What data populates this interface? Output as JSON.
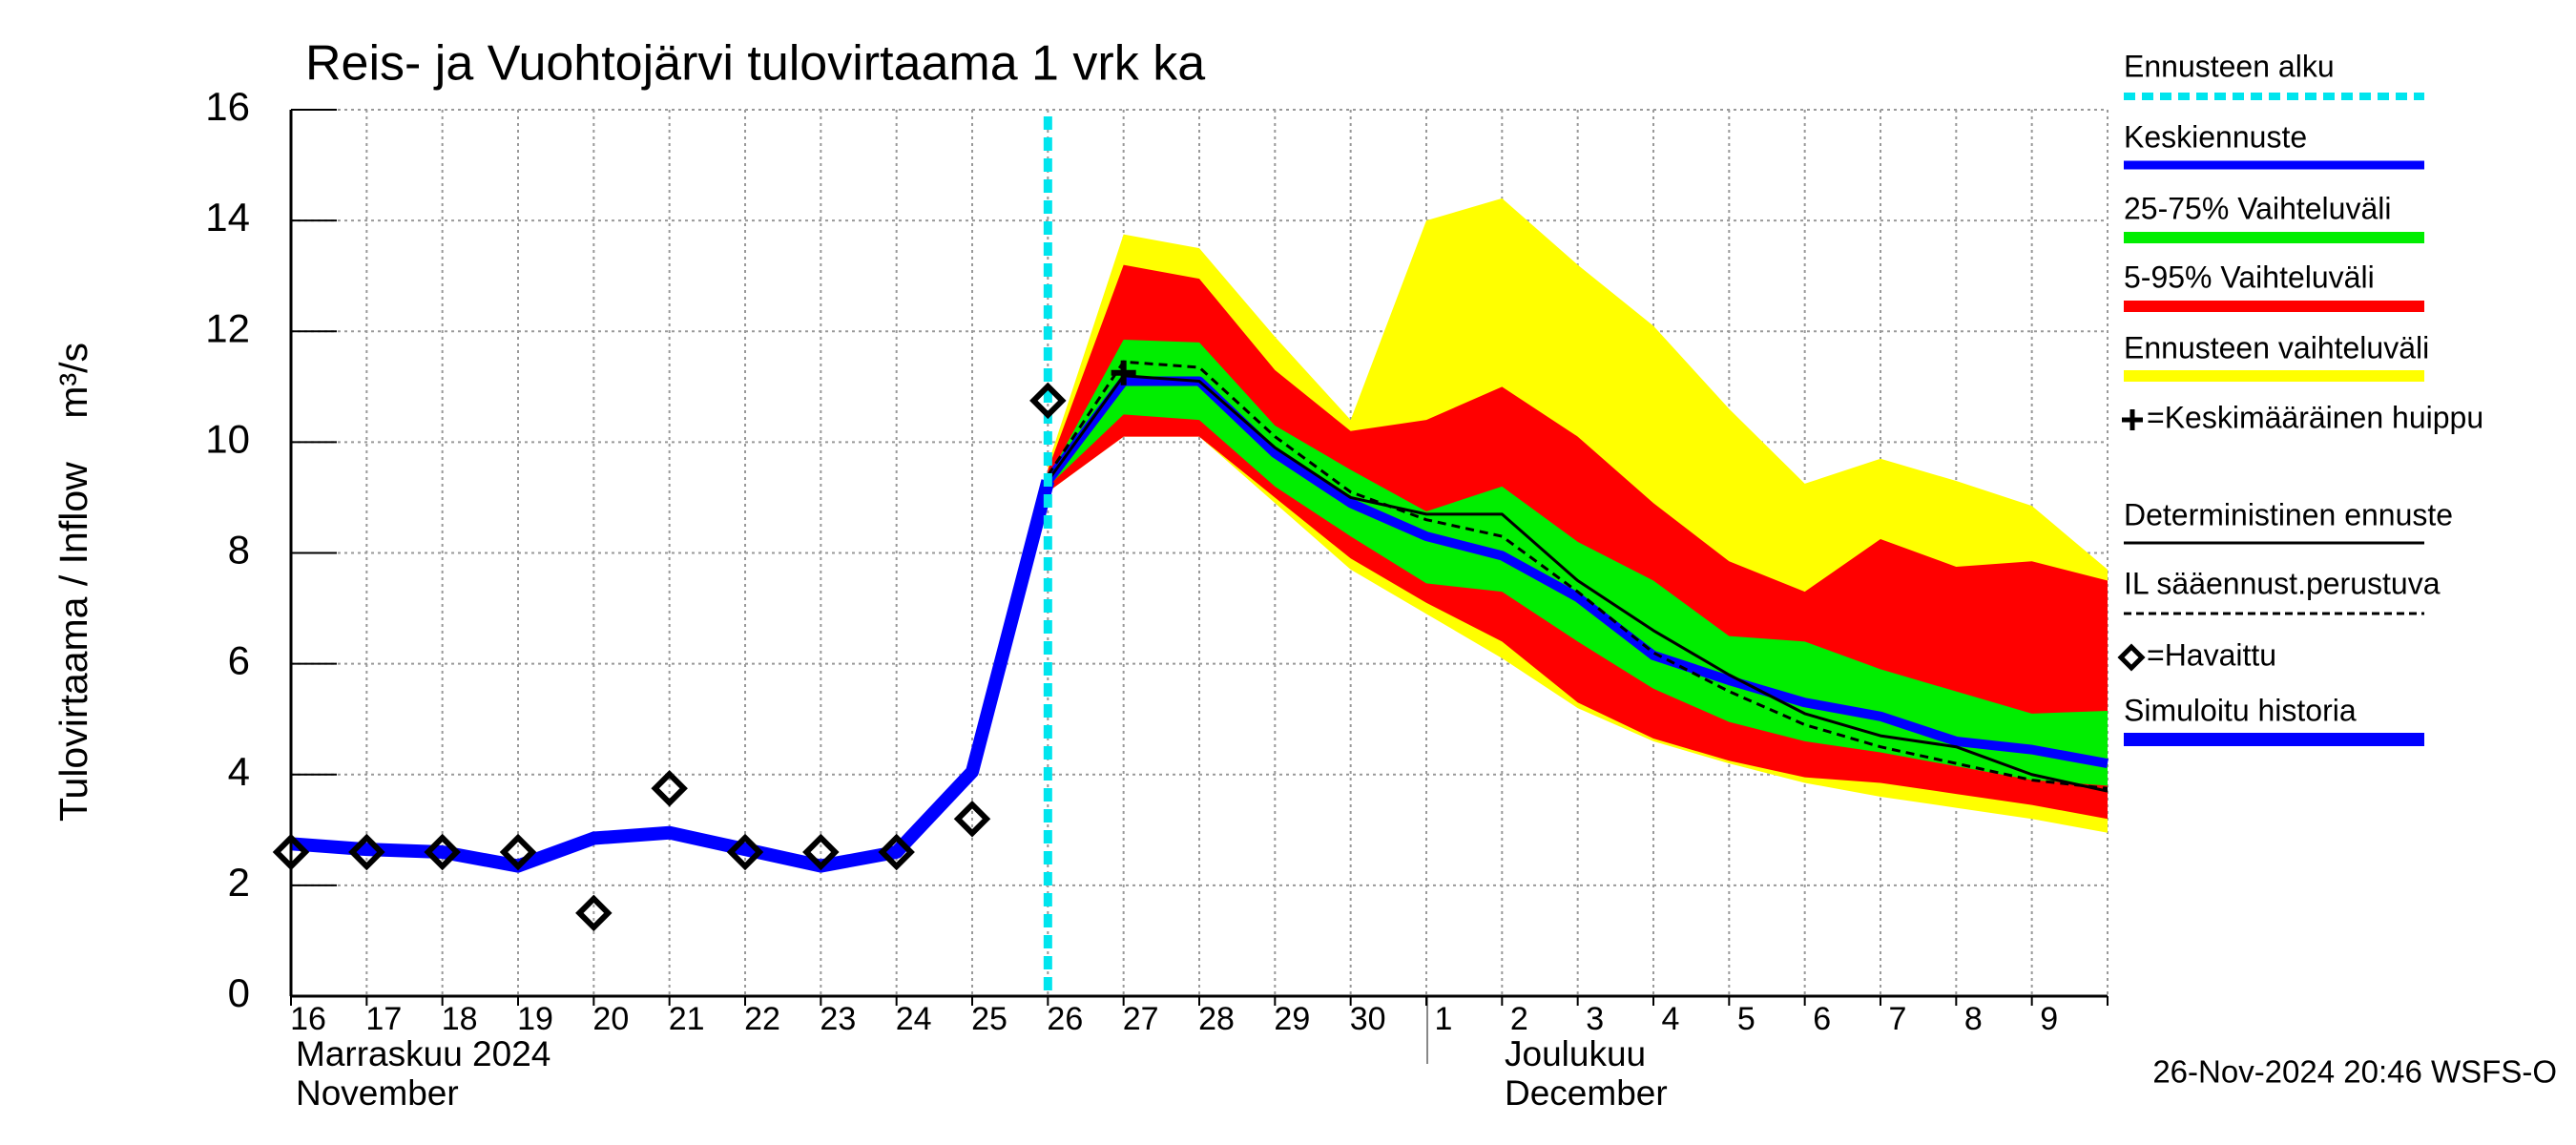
{
  "chart_data": {
    "type": "hydrograph",
    "title": "Reis- ja Vuohtojärvi tulovirtaama 1 vrk ka",
    "y_label": "Tulovirtaama / Inflow    m³/s",
    "footer": "26-Nov-2024 20:46 WSFS-O",
    "months": [
      {
        "fi": "Marraskuu 2024",
        "en": "November"
      },
      {
        "fi": "Joulukuu",
        "en": "December"
      }
    ],
    "categories": [
      "16",
      "17",
      "18",
      "19",
      "20",
      "21",
      "22",
      "23",
      "24",
      "25",
      "26",
      "27",
      "28",
      "29",
      "30",
      "1",
      "2",
      "3",
      "4",
      "5",
      "6",
      "7",
      "8",
      "9",
      null
    ],
    "ylim": [
      0,
      16
    ],
    "yticks": [
      0,
      2,
      4,
      6,
      8,
      10,
      12,
      14,
      16
    ],
    "grid": true,
    "legend": "right",
    "forecast_start": {
      "name": "Ennusteen alku",
      "color": "#00e5ee",
      "category": "26"
    },
    "series": [
      {
        "name": "Keskiennuste",
        "kind": "line",
        "color": "#0000ff",
        "values": [
          null,
          null,
          null,
          null,
          null,
          null,
          null,
          null,
          null,
          null,
          9.3,
          11.1,
          11.1,
          9.8,
          8.9,
          8.3,
          7.95,
          7.2,
          6.15,
          5.7,
          5.3,
          5.05,
          4.6,
          4.45,
          4.2
        ]
      },
      {
        "name": "25-75% Vaihteluväli",
        "kind": "band",
        "color": "#00ee00",
        "upper": [
          null,
          null,
          null,
          null,
          null,
          null,
          null,
          null,
          null,
          null,
          9.35,
          11.85,
          11.8,
          10.3,
          9.5,
          8.75,
          9.2,
          8.2,
          7.5,
          6.5,
          6.4,
          5.9,
          5.5,
          5.1,
          5.15
        ],
        "lower": [
          null,
          null,
          null,
          null,
          null,
          null,
          null,
          null,
          null,
          null,
          9.2,
          10.5,
          10.4,
          9.2,
          8.3,
          7.45,
          7.3,
          6.4,
          5.55,
          4.95,
          4.6,
          4.4,
          4.15,
          3.9,
          3.8
        ]
      },
      {
        "name": "5-95% Vaihteluväli",
        "kind": "band",
        "color": "#ff0000",
        "upper": [
          null,
          null,
          null,
          null,
          null,
          null,
          null,
          null,
          null,
          null,
          9.5,
          13.2,
          12.95,
          11.3,
          10.2,
          10.4,
          11.0,
          10.1,
          8.9,
          7.85,
          7.3,
          8.25,
          7.75,
          7.85,
          7.5
        ],
        "lower": [
          null,
          null,
          null,
          null,
          null,
          null,
          null,
          null,
          null,
          null,
          9.1,
          10.1,
          10.1,
          9.0,
          7.9,
          7.1,
          6.4,
          5.3,
          4.65,
          4.25,
          3.95,
          3.85,
          3.65,
          3.45,
          3.2
        ]
      },
      {
        "name": "Ennusteen vaihteluväli",
        "kind": "band",
        "color": "#ffff00",
        "upper": [
          null,
          null,
          null,
          null,
          null,
          null,
          null,
          null,
          null,
          null,
          9.6,
          13.75,
          13.5,
          11.9,
          10.4,
          14.0,
          14.4,
          13.2,
          12.1,
          10.6,
          9.25,
          9.7,
          9.3,
          8.85,
          7.7
        ],
        "lower": [
          null,
          null,
          null,
          null,
          null,
          null,
          null,
          null,
          null,
          null,
          9.1,
          10.1,
          10.1,
          8.9,
          7.7,
          6.9,
          6.1,
          5.2,
          4.6,
          4.2,
          3.85,
          3.6,
          3.4,
          3.2,
          2.95
        ]
      },
      {
        "name": "=Keskimääräinen huippu",
        "kind": "plus",
        "color": "#000000",
        "values": [
          null,
          null,
          null,
          null,
          null,
          null,
          null,
          null,
          null,
          null,
          null,
          11.25,
          null,
          null,
          null,
          null,
          null,
          null,
          null,
          null,
          null,
          null,
          null,
          null,
          null
        ]
      },
      {
        "name": "Deterministinen ennuste",
        "kind": "line",
        "color": "#000000",
        "values": [
          null,
          null,
          null,
          null,
          null,
          null,
          null,
          null,
          null,
          null,
          9.3,
          11.2,
          11.1,
          9.9,
          9.0,
          8.7,
          8.7,
          7.5,
          6.6,
          5.8,
          5.1,
          4.7,
          4.5,
          4.0,
          3.7
        ]
      },
      {
        "name": "IL sääennust.perustuva",
        "kind": "dashed",
        "color": "#000000",
        "values": [
          null,
          null,
          null,
          null,
          null,
          null,
          null,
          null,
          null,
          null,
          9.4,
          11.45,
          11.35,
          10.1,
          9.1,
          8.6,
          8.3,
          7.3,
          6.2,
          5.5,
          4.9,
          4.5,
          4.2,
          3.9,
          3.75
        ]
      },
      {
        "name": "=Havaittu",
        "kind": "diamond",
        "color": "#000000",
        "values": [
          2.6,
          2.6,
          2.6,
          2.6,
          1.5,
          3.75,
          2.6,
          2.6,
          2.6,
          3.2,
          10.75,
          null,
          null,
          null,
          null,
          null,
          null,
          null,
          null,
          null,
          null,
          null,
          null,
          null,
          null
        ]
      },
      {
        "name": "Simuloitu historia",
        "kind": "line",
        "color": "#0000ff",
        "values": [
          2.75,
          2.65,
          2.6,
          2.35,
          2.85,
          2.95,
          2.65,
          2.35,
          2.6,
          4.05,
          9.3,
          null,
          null,
          null,
          null,
          null,
          null,
          null,
          null,
          null,
          null,
          null,
          null,
          null,
          null
        ]
      }
    ]
  }
}
